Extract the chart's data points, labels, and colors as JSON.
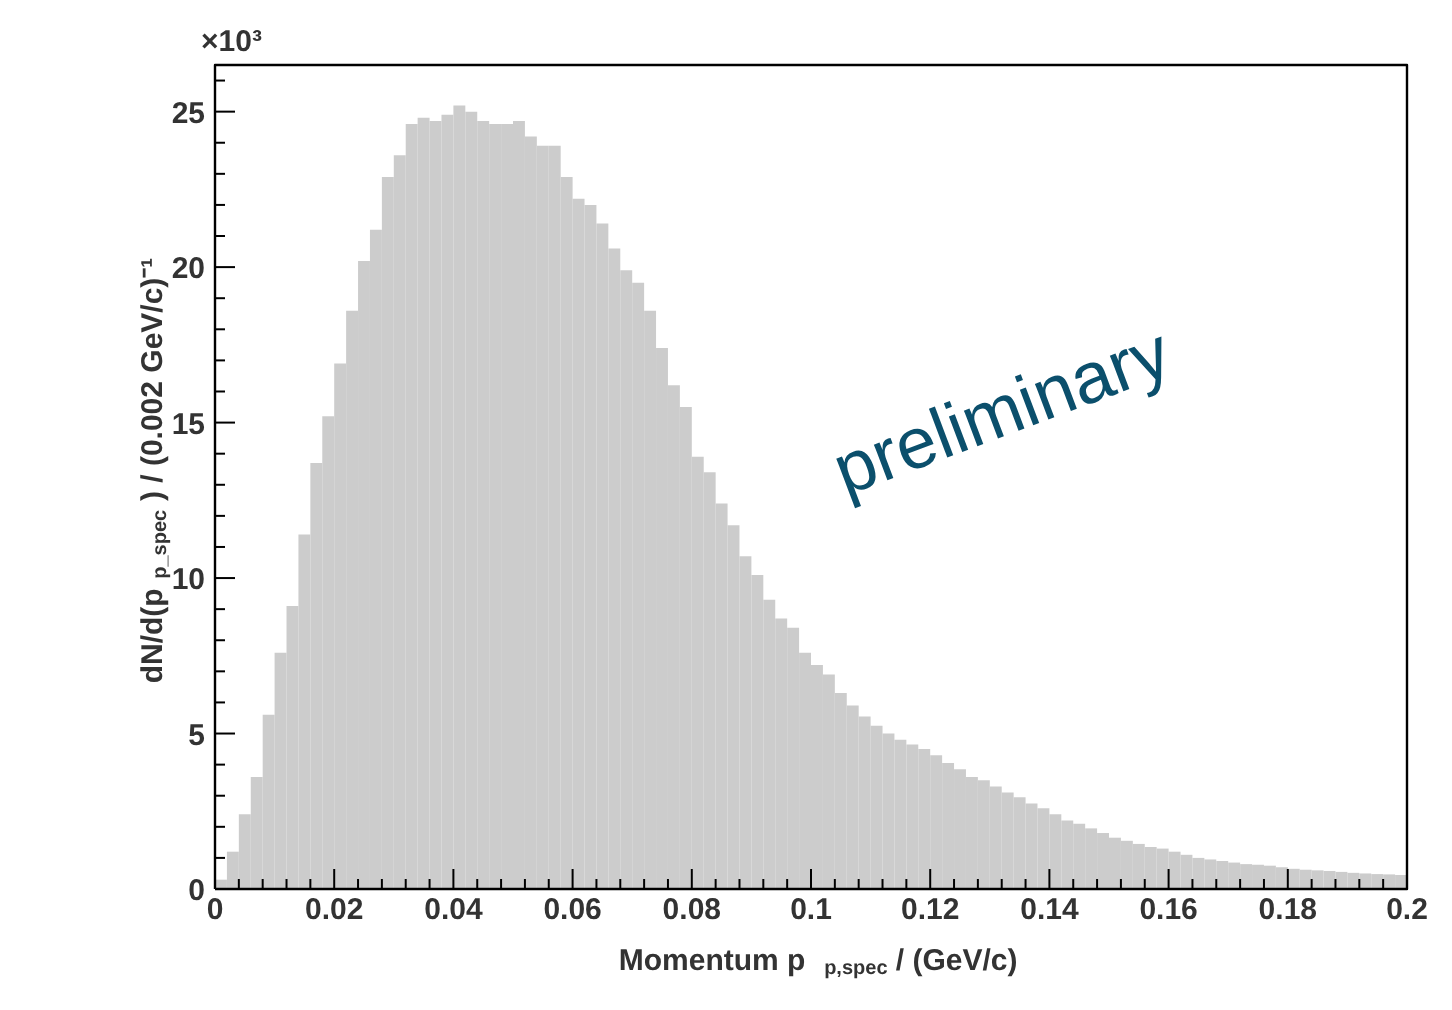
{
  "chart_data": {
    "type": "histogram",
    "xlabel": "Momentum p$_{p,spec}$ / (GeV/c)",
    "ylabel": "dN/d(p$_{p_spec}$) / (0.002 GeV/c)⁻¹",
    "annotations": [
      "×10³",
      "preliminary"
    ],
    "bins": [
      0,
      0.002,
      0.004,
      0.006,
      0.008,
      0.01,
      0.012,
      0.014,
      0.016,
      0.018,
      0.02,
      0.022,
      0.024,
      0.026,
      0.028,
      0.03,
      0.032,
      0.034,
      0.036,
      0.038,
      0.04,
      0.042,
      0.044,
      0.046,
      0.048,
      0.05,
      0.052,
      0.054,
      0.056,
      0.058,
      0.06,
      0.062,
      0.064,
      0.066,
      0.068,
      0.07,
      0.072,
      0.074,
      0.076,
      0.078,
      0.08,
      0.082,
      0.084,
      0.086,
      0.088,
      0.09,
      0.092,
      0.094,
      0.096,
      0.098,
      0.1,
      0.102,
      0.104,
      0.106,
      0.108,
      0.11,
      0.112,
      0.114,
      0.116,
      0.118,
      0.12,
      0.122,
      0.124,
      0.126,
      0.128,
      0.13,
      0.132,
      0.134,
      0.136,
      0.138,
      0.14,
      0.142,
      0.144,
      0.146,
      0.148,
      0.15,
      0.152,
      0.154,
      0.156,
      0.158,
      0.16,
      0.162,
      0.164,
      0.166,
      0.168,
      0.17,
      0.172,
      0.174,
      0.176,
      0.178,
      0.18,
      0.182,
      0.184,
      0.186,
      0.188,
      0.19,
      0.192,
      0.194,
      0.196,
      0.198,
      0.2
    ],
    "values": [
      0.3,
      1.2,
      2.4,
      3.6,
      5.6,
      7.6,
      9.1,
      11.4,
      13.7,
      15.2,
      16.9,
      18.6,
      20.2,
      21.2,
      22.9,
      23.6,
      24.6,
      24.8,
      24.7,
      24.9,
      25.2,
      25.0,
      24.7,
      24.6,
      24.6,
      24.7,
      24.2,
      23.9,
      23.9,
      22.9,
      22.2,
      22.0,
      21.4,
      20.6,
      19.9,
      19.5,
      18.6,
      17.4,
      16.2,
      15.5,
      13.9,
      13.4,
      12.4,
      11.7,
      10.7,
      10.1,
      9.3,
      8.7,
      8.4,
      7.6,
      7.2,
      6.9,
      6.3,
      5.9,
      5.55,
      5.25,
      5.0,
      4.8,
      4.65,
      4.5,
      4.3,
      4.05,
      3.85,
      3.6,
      3.5,
      3.3,
      3.1,
      2.95,
      2.75,
      2.6,
      2.4,
      2.2,
      2.1,
      1.95,
      1.8,
      1.65,
      1.55,
      1.45,
      1.35,
      1.3,
      1.2,
      1.1,
      1.0,
      0.95,
      0.9,
      0.85,
      0.8,
      0.78,
      0.75,
      0.7,
      0.65,
      0.62,
      0.6,
      0.58,
      0.55,
      0.52,
      0.5,
      0.48,
      0.47,
      0.45
    ],
    "color": "#cccccc",
    "xlim": [
      0,
      0.2
    ],
    "xticks": [
      0,
      0.02,
      0.04,
      0.06,
      0.08,
      0.1,
      0.12,
      0.14,
      0.16,
      0.18,
      0.2
    ],
    "ylim": [
      0,
      26.5
    ],
    "yticks": [
      0,
      5,
      10,
      15,
      20,
      25
    ],
    "grid": false
  }
}
